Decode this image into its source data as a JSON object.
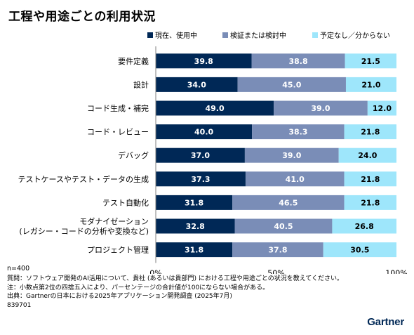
{
  "title": "工程や用途ごとの利用状況",
  "legend": [
    {
      "label": "現在、使用中",
      "color": "#002856"
    },
    {
      "label": "検証または検討中",
      "color": "#7a8db7"
    },
    {
      "label": "予定なし／分からない",
      "color": "#9ee6fb"
    }
  ],
  "sample_size": "n=400",
  "notes": [
    "質問：ソフトウェア開発のAI活用について、貴社 (あるいは貴部門) における工程や用途ごとの状況を教えてください。",
    "注：小数点第2位の四捨五入により、パーセンテージの合計値が100にならない場合がある。",
    "出典：Gartnerの日本における2025年アプリケーション開発調査 (2025年7月)",
    "839701"
  ],
  "logo": "Gartner",
  "chart_data": {
    "type": "bar",
    "orientation": "horizontal",
    "stacked": true,
    "categories": [
      [
        "要件定義"
      ],
      [
        "設計"
      ],
      [
        "コード生成・補完"
      ],
      [
        "コード・レビュー"
      ],
      [
        "デバッグ"
      ],
      [
        "テストケースやテスト・データの生成"
      ],
      [
        "テスト自動化"
      ],
      [
        "モダナイゼーション",
        "(レガシー・コードの分析や変換など)"
      ],
      [
        "プロジェクト管理"
      ]
    ],
    "series": [
      {
        "name": "現在、使用中",
        "color": "#002856",
        "text_color": "#ffffff",
        "values": [
          39.8,
          34.0,
          49.0,
          40.0,
          37.0,
          37.3,
          31.8,
          32.8,
          31.8
        ],
        "labels": [
          "39.8",
          "34.0",
          "49.0",
          "40.0",
          "37.0",
          "37.3",
          "31.8",
          "32.8",
          "31.8"
        ]
      },
      {
        "name": "検証または検討中",
        "color": "#7a8db7",
        "text_color": "#ffffff",
        "values": [
          38.8,
          45.0,
          39.0,
          38.3,
          39.0,
          41.0,
          46.5,
          40.5,
          37.8
        ],
        "labels": [
          "38.8",
          "45.0",
          "39.0",
          "38.3",
          "39.0",
          "41.0",
          "46.5",
          "40.5",
          "37.8"
        ]
      },
      {
        "name": "予定なし／分からない",
        "color": "#9ee6fb",
        "text_color": "#000000",
        "values": [
          21.5,
          21.0,
          12.0,
          21.8,
          24.0,
          21.8,
          21.8,
          26.8,
          30.5
        ],
        "labels": [
          "21.5",
          "21.0",
          "12.0",
          "21.8",
          "24.0",
          "21.8",
          "21.8",
          "26.8",
          "30.5"
        ]
      }
    ],
    "xlim": [
      0,
      100
    ],
    "xticks": [
      "0%",
      "50%",
      "100%"
    ],
    "grid": false,
    "legend_position": "top"
  }
}
